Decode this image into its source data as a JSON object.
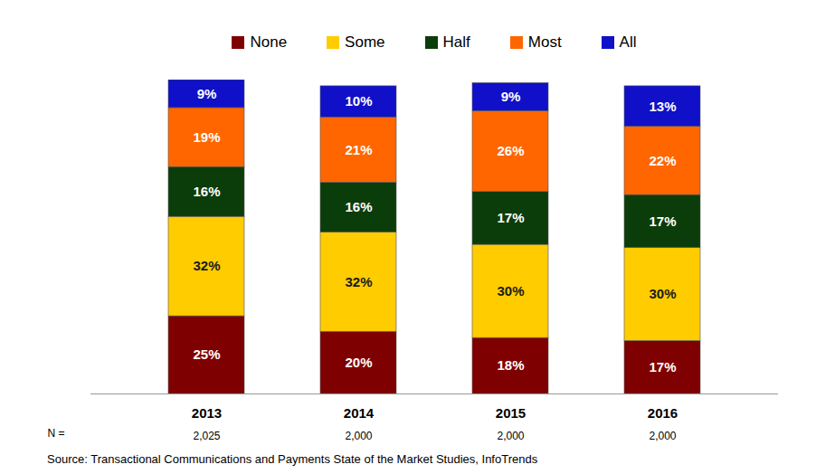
{
  "chart_data": {
    "type": "bar",
    "stacked": true,
    "categories": [
      "2013",
      "2014",
      "2015",
      "2016"
    ],
    "series": [
      {
        "name": "None",
        "color": "#7f0000",
        "values": [
          25,
          20,
          18,
          17
        ],
        "value_labels": [
          "25%",
          "20%",
          "18%",
          "17%"
        ]
      },
      {
        "name": "Some",
        "color": "#ffcc00",
        "values": [
          32,
          32,
          30,
          30
        ],
        "value_labels": [
          "32%",
          "32%",
          "30%",
          "30%"
        ]
      },
      {
        "name": "Half",
        "color": "#0b3d0b",
        "values": [
          16,
          16,
          17,
          17
        ],
        "value_labels": [
          "16%",
          "16%",
          "17%",
          "17%"
        ]
      },
      {
        "name": "Most",
        "color": "#ff6600",
        "values": [
          19,
          21,
          26,
          22
        ],
        "value_labels": [
          "19%",
          "21%",
          "26%",
          "22%"
        ]
      },
      {
        "name": "All",
        "color": "#0f10c8",
        "values": [
          9,
          10,
          9,
          13
        ],
        "value_labels": [
          "9%",
          "10%",
          "9%",
          "13%"
        ]
      }
    ],
    "ylim": [
      0,
      101
    ],
    "tick_labels": "x",
    "data_labels": true,
    "legend": "top",
    "sample_size": {
      "label": "N =",
      "values": [
        2025,
        2000,
        2000,
        2000
      ],
      "value_labels": [
        "2,025",
        "2,000",
        "2,000",
        "2,000"
      ]
    },
    "source": "Source: Transactional Communications and Payments State of the Market Studies, InfoTrends"
  }
}
